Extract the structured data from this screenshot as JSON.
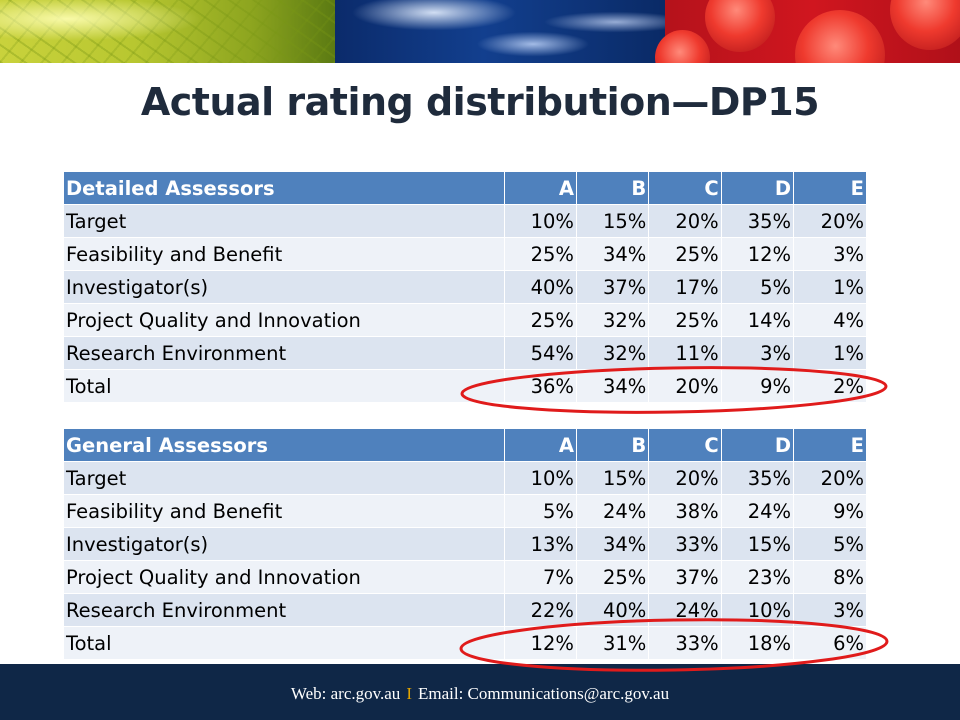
{
  "title": "Actual rating distribution—DP15",
  "tables": [
    {
      "header": [
        "Detailed Assessors",
        "A",
        "B",
        "C",
        "D",
        "E"
      ],
      "rows": [
        [
          "Target",
          "10%",
          "15%",
          "20%",
          "35%",
          "20%"
        ],
        [
          "Feasibility and Benefit",
          "25%",
          "34%",
          "25%",
          "12%",
          "3%"
        ],
        [
          "Investigator(s)",
          "40%",
          "37%",
          "17%",
          "5%",
          "1%"
        ],
        [
          "Project Quality and Innovation",
          "25%",
          "32%",
          "25%",
          "14%",
          "4%"
        ],
        [
          "Research Environment",
          "54%",
          "32%",
          "11%",
          "3%",
          "1%"
        ],
        [
          "Total",
          "36%",
          "34%",
          "20%",
          "9%",
          "2%"
        ]
      ]
    },
    {
      "header": [
        "General Assessors",
        "A",
        "B",
        "C",
        "D",
        "E"
      ],
      "rows": [
        [
          "Target",
          "10%",
          "15%",
          "20%",
          "35%",
          "20%"
        ],
        [
          "Feasibility and Benefit",
          "5%",
          "24%",
          "38%",
          "24%",
          "9%"
        ],
        [
          "Investigator(s)",
          "13%",
          "34%",
          "33%",
          "15%",
          "5%"
        ],
        [
          "Project Quality and Innovation",
          "7%",
          "25%",
          "37%",
          "23%",
          "8%"
        ],
        [
          "Research Environment",
          "22%",
          "40%",
          "24%",
          "10%",
          "3%"
        ],
        [
          "Total",
          "12%",
          "31%",
          "33%",
          "18%",
          "6%"
        ]
      ]
    }
  ],
  "footer": {
    "web": "Web: arc.gov.au",
    "separator": "I",
    "email": "Email: Communications@arc.gov.au"
  },
  "colors": {
    "header_blue": "#4f81bd",
    "footer_navy": "#0f2747",
    "highlight_red": "#e01b1b"
  }
}
